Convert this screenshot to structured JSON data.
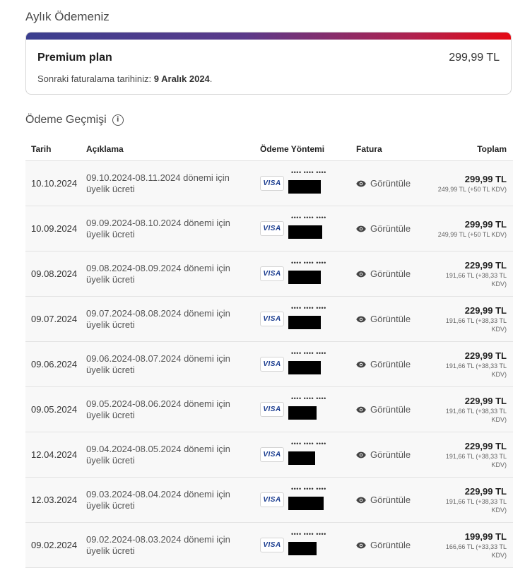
{
  "header": {
    "title": "Aylık Ödemeniz"
  },
  "plan": {
    "name": "Premium plan",
    "price": "299,99 TL",
    "next_billing_prefix": "Sonraki faturalama tarihiniz:",
    "next_billing_date": "9 Aralık 2024",
    "next_billing_suffix": "."
  },
  "history": {
    "title": "Ödeme Geçmişi",
    "columns": [
      "Tarih",
      "Açıklama",
      "Ödeme Yöntemi",
      "Fatura",
      "Toplam"
    ],
    "rows": [
      {
        "date": "10.10.2024",
        "description": "09.10.2024-08.11.2024 dönemi için üyelik ücreti",
        "card_brand": "VISA",
        "masked": "•••• •••• ••••",
        "invoice_label": "Görüntüle",
        "total": "299,99 TL",
        "breakdown": "249,99 TL (+50 TL KDV)"
      },
      {
        "date": "10.09.2024",
        "description": "09.09.2024-08.10.2024 dönemi için üyelik ücreti",
        "card_brand": "VISA",
        "masked": "•••• •••• ••••",
        "invoice_label": "Görüntüle",
        "total": "299,99 TL",
        "breakdown": "249,99 TL (+50 TL KDV)"
      },
      {
        "date": "09.08.2024",
        "description": "09.08.2024-08.09.2024 dönemi için üyelik ücreti",
        "card_brand": "VISA",
        "masked": "•••• •••• ••••",
        "invoice_label": "Görüntüle",
        "total": "229,99 TL",
        "breakdown": "191,66 TL (+38,33 TL KDV)"
      },
      {
        "date": "09.07.2024",
        "description": "09.07.2024-08.08.2024 dönemi için üyelik ücreti",
        "card_brand": "VISA",
        "masked": "•••• •••• ••••",
        "invoice_label": "Görüntüle",
        "total": "229,99 TL",
        "breakdown": "191,66 TL (+38,33 TL KDV)"
      },
      {
        "date": "09.06.2024",
        "description": "09.06.2024-08.07.2024 dönemi için üyelik ücreti",
        "card_brand": "VISA",
        "masked": "•••• •••• ••••",
        "invoice_label": "Görüntüle",
        "total": "229,99 TL",
        "breakdown": "191,66 TL (+38,33 TL KDV)"
      },
      {
        "date": "09.05.2024",
        "description": "09.05.2024-08.06.2024 dönemi için üyelik ücreti",
        "card_brand": "VISA",
        "masked": "•••• •••• ••••",
        "invoice_label": "Görüntüle",
        "total": "229,99 TL",
        "breakdown": "191,66 TL (+38,33 TL KDV)"
      },
      {
        "date": "12.04.2024",
        "description": "09.04.2024-08.05.2024 dönemi için üyelik ücreti",
        "card_brand": "VISA",
        "masked": "•••• •••• ••••",
        "invoice_label": "Görüntüle",
        "total": "229,99 TL",
        "breakdown": "191,66 TL (+38,33 TL KDV)"
      },
      {
        "date": "12.03.2024",
        "description": "09.03.2024-08.04.2024 dönemi için üyelik ücreti",
        "card_brand": "VISA",
        "masked": "•••• •••• ••••",
        "invoice_label": "Görüntüle",
        "total": "229,99 TL",
        "breakdown": "191,66 TL (+38,33 TL KDV)"
      },
      {
        "date": "09.02.2024",
        "description": "09.02.2024-08.03.2024 dönemi için üyelik ücreti",
        "card_brand": "VISA",
        "masked": "•••• •••• ••••",
        "invoice_label": "Görüntüle",
        "total": "199,99 TL",
        "breakdown": "166,66 TL (+33,33 TL KDV)"
      }
    ]
  },
  "icons": {
    "info": "info-icon",
    "view": "eye-icon"
  },
  "colors": {
    "brand_gradient_start": "#3b3f8f",
    "brand_gradient_end": "#e50914",
    "visa_blue": "#1a3c8f"
  }
}
